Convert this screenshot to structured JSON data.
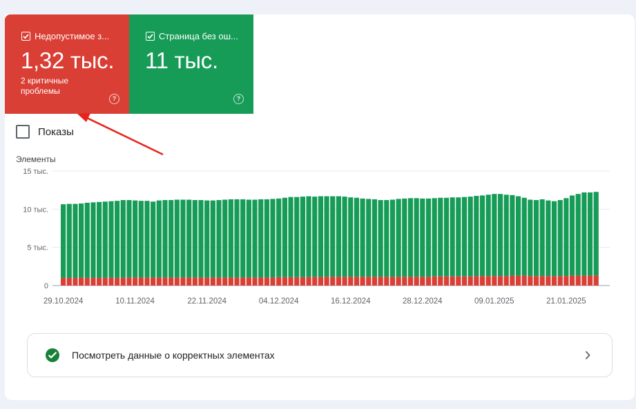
{
  "cards": {
    "invalid": {
      "label": "Недопустимое з...",
      "value": "1,32 тыс.",
      "sub": "2 критичные проблемы",
      "color": "#d93f35",
      "checked": true,
      "help_icon": "help-circle-icon"
    },
    "valid": {
      "label": "Страница без ош...",
      "value": "11 тыс.",
      "color": "#179c58",
      "checked": true,
      "help_icon": "help-circle-icon"
    }
  },
  "impressions": {
    "label": "Показы",
    "checked": false
  },
  "valid_link": {
    "label": "Посмотреть данные о корректных элементах",
    "icon": "check-circle-icon",
    "chevron": "chevron-right-icon"
  },
  "chart_data": {
    "type": "bar",
    "stacked": true,
    "ylabel": "Элементы",
    "ylim": [
      0,
      15000
    ],
    "y_ticks": [
      {
        "value": 0,
        "label": "0"
      },
      {
        "value": 5000,
        "label": "5 тыс."
      },
      {
        "value": 10000,
        "label": "10 тыс."
      },
      {
        "value": 15000,
        "label": "15 тыс."
      }
    ],
    "x_tick_labels": [
      {
        "index": 0,
        "label": "29.10.2024"
      },
      {
        "index": 12,
        "label": "10.11.2024"
      },
      {
        "index": 24,
        "label": "22.11.2024"
      },
      {
        "index": 36,
        "label": "04.12.2024"
      },
      {
        "index": 48,
        "label": "16.12.2024"
      },
      {
        "index": 60,
        "label": "28.12.2024"
      },
      {
        "index": 72,
        "label": "09.01.2025"
      },
      {
        "index": 84,
        "label": "21.01.2025"
      }
    ],
    "grid": true,
    "series": [
      {
        "color": "#d93f35",
        "values": [
          1000,
          1000,
          1000,
          1050,
          1000,
          1000,
          1000,
          1000,
          1050,
          1000,
          1050,
          1050,
          1050,
          1050,
          1050,
          1050,
          1050,
          1050,
          1050,
          1050,
          1050,
          1050,
          1050,
          1050,
          1050,
          1050,
          1050,
          1050,
          1050,
          1050,
          1050,
          1050,
          1050,
          1050,
          1050,
          1050,
          1100,
          1100,
          1100,
          1100,
          1100,
          1100,
          1150,
          1100,
          1150,
          1150,
          1150,
          1150,
          1150,
          1150,
          1150,
          1150,
          1150,
          1150,
          1150,
          1150,
          1150,
          1150,
          1150,
          1150,
          1150,
          1150,
          1200,
          1200,
          1200,
          1200,
          1200,
          1200,
          1200,
          1250,
          1250,
          1250,
          1250,
          1250,
          1250,
          1300,
          1300,
          1300,
          1250,
          1250,
          1250,
          1250,
          1250,
          1250,
          1250,
          1300,
          1300,
          1300,
          1300,
          1320
        ]
      },
      {
        "color": "#179c58",
        "values": [
          9650,
          9700,
          9700,
          9700,
          9850,
          9900,
          9950,
          10000,
          10000,
          10100,
          10150,
          10150,
          10100,
          10050,
          10050,
          9950,
          10100,
          10150,
          10150,
          10200,
          10200,
          10200,
          10150,
          10150,
          10100,
          10100,
          10150,
          10200,
          10250,
          10250,
          10250,
          10200,
          10200,
          10250,
          10250,
          10300,
          10300,
          10400,
          10500,
          10500,
          10550,
          10600,
          10500,
          10600,
          10550,
          10550,
          10550,
          10500,
          10400,
          10350,
          10250,
          10200,
          10150,
          10050,
          10050,
          10100,
          10200,
          10250,
          10300,
          10300,
          10250,
          10250,
          10250,
          10300,
          10300,
          10350,
          10350,
          10400,
          10450,
          10500,
          10550,
          10650,
          10750,
          10750,
          10650,
          10550,
          10400,
          10200,
          10000,
          9950,
          10050,
          9900,
          9800,
          9950,
          10200,
          10500,
          10700,
          10900,
          10900,
          10950
        ]
      }
    ]
  }
}
